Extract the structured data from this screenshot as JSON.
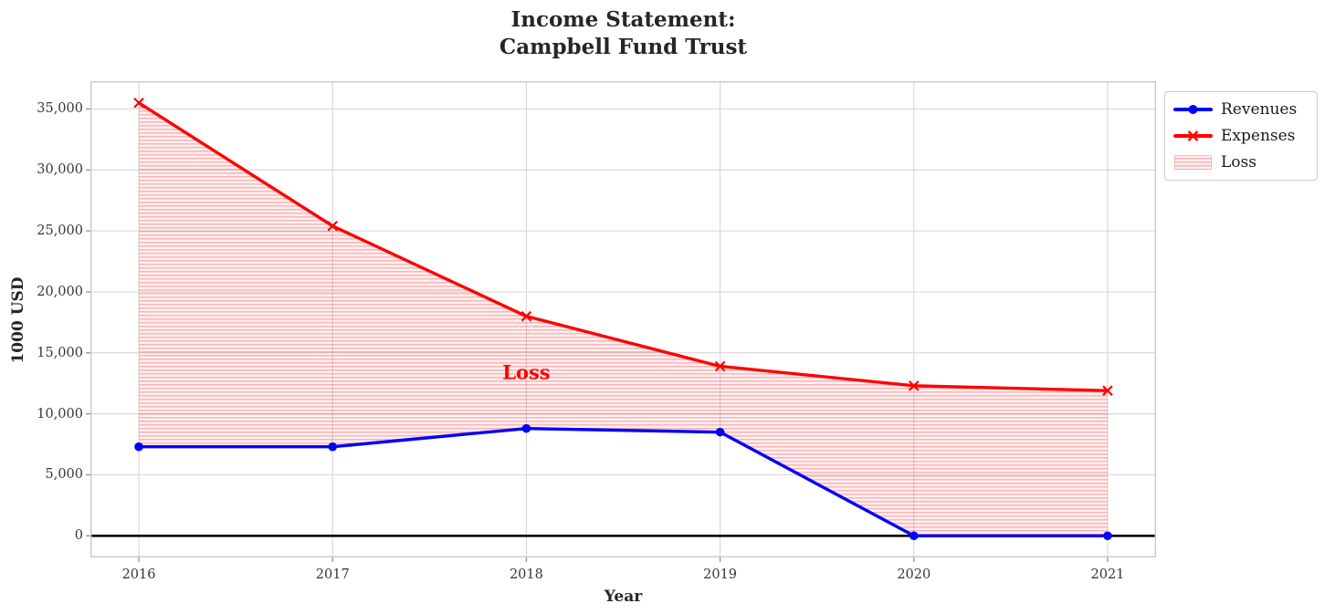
{
  "chart_data": {
    "type": "line",
    "title": "Income Statement:\nCampbell Fund Trust",
    "xlabel": "Year",
    "ylabel": "1000 USD",
    "x": [
      2016,
      2017,
      2018,
      2019,
      2020,
      2021
    ],
    "series": [
      {
        "name": "Revenues",
        "color": "#0000ff",
        "marker": "circle",
        "values": [
          7300,
          7300,
          8800,
          8500,
          0,
          0
        ]
      },
      {
        "name": "Expenses",
        "color": "#ff0000",
        "marker": "x",
        "values": [
          35500,
          25400,
          18000,
          13900,
          12300,
          11900
        ]
      }
    ],
    "fill_between": {
      "label": "Loss",
      "upper": "Expenses",
      "lower": "Revenues",
      "hatch": "horizontal",
      "fill_color": "rgba(255,0,0,0.055)",
      "hatch_color": "rgba(255,0,0,0.26)",
      "edge_color": "rgba(255,0,0,0.25)"
    },
    "annotation": {
      "text": "Loss",
      "x": 2018,
      "y": 13400,
      "color": "#ff0000"
    },
    "zero_line": {
      "y": 0,
      "color": "#000000"
    },
    "xlim": [
      2015.75,
      2021.25
    ],
    "ylim": [
      -1775,
      37275
    ],
    "grid": true,
    "grid_color": "#d9d9d9",
    "spine_color": "#c9c9c9",
    "tick_color": "#8a8a8a",
    "xticks": {
      "values": [
        2016,
        2017,
        2018,
        2019,
        2020,
        2021
      ],
      "labels": [
        "2016",
        "2017",
        "2018",
        "2019",
        "2020",
        "2021"
      ]
    },
    "yticks": {
      "values": [
        0,
        5000,
        10000,
        15000,
        20000,
        25000,
        30000,
        35000
      ],
      "labels": [
        "0",
        "5,000",
        "10,000",
        "15,000",
        "20,000",
        "25,000",
        "30,000",
        "35,000"
      ]
    },
    "legend": {
      "position": "outside-top-right",
      "entries": [
        {
          "label": "Revenues",
          "sample": "line-circle"
        },
        {
          "label": "Expenses",
          "sample": "line-x"
        },
        {
          "label": "Loss",
          "sample": "hatched-patch"
        }
      ]
    }
  }
}
